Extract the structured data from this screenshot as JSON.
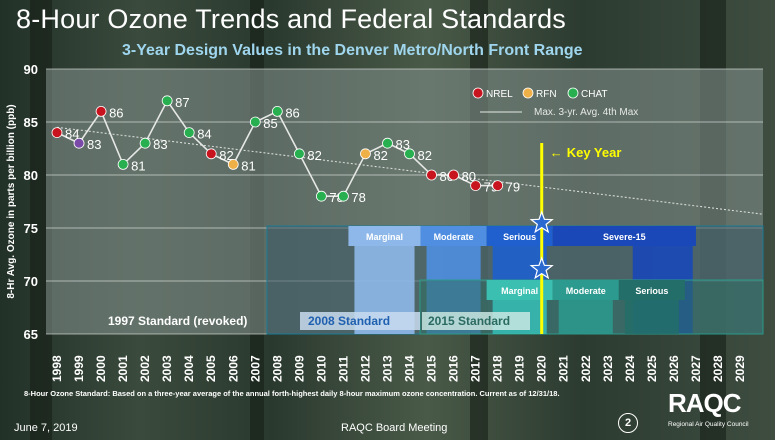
{
  "title": "8-Hour Ozone Trends and Federal Standards",
  "subtitle": "3-Year Design Values in the Denver Metro/North Front Range",
  "footnote": "8-Hour Ozone Standard: Based on a three-year average of the annual forth-highest daily 8-hour maximum ozone concentration. Current as of 12/31/18.",
  "footer": {
    "date": "June 7, 2019",
    "meeting": "RAQC Board Meeting",
    "page": "2"
  },
  "logo": {
    "text": "RAQC",
    "subtitle": "Regional Air Quality Council"
  },
  "colors": {
    "NREL": "#c8141e",
    "RFN": "#f0b048",
    "CHAT": "#28b050",
    "early": "#7a4aa8",
    "key_year": "#ffff00"
  },
  "chart_data": {
    "type": "line",
    "ylabel": "8-Hr Avg. Ozone in parts per billion (ppb)",
    "ylim": [
      65,
      90
    ],
    "yticks": [
      65,
      70,
      75,
      80,
      85,
      90
    ],
    "xlim": [
      1998,
      2029
    ],
    "xticks": [
      "1998",
      "1999",
      "2000",
      "2001",
      "2002",
      "2003",
      "2004",
      "2005",
      "2006",
      "2007",
      "2008",
      "2009",
      "2010",
      "2011",
      "2012",
      "2013",
      "2014",
      "2015",
      "2016",
      "2017",
      "2018",
      "2019",
      "2020",
      "2021",
      "2022",
      "2023",
      "2024",
      "2025",
      "2026",
      "2027",
      "2028",
      "2029"
    ],
    "grid": true,
    "legend": {
      "position": "top-right",
      "entries": [
        "NREL",
        "RFN",
        "CHAT"
      ],
      "trend_label": "Max. 3-yr. Avg. 4th Max"
    },
    "series": [
      {
        "name": "Max. 3-yr. Avg. 4th Max",
        "points": [
          {
            "x": 1998,
            "y": 84,
            "site": "NREL",
            "label": "84"
          },
          {
            "x": 1999,
            "y": 83,
            "site": "early",
            "label": "83"
          },
          {
            "x": 2000,
            "y": 86,
            "site": "NREL",
            "label": "86"
          },
          {
            "x": 2001,
            "y": 81,
            "site": "CHAT",
            "label": "81"
          },
          {
            "x": 2002,
            "y": 83,
            "site": "CHAT",
            "label": "83"
          },
          {
            "x": 2003,
            "y": 87,
            "site": "CHAT",
            "label": "87"
          },
          {
            "x": 2004,
            "y": 84,
            "site": "CHAT",
            "label": "84"
          },
          {
            "x": 2005,
            "y": 82,
            "site": "NREL",
            "label": "82"
          },
          {
            "x": 2006,
            "y": 81,
            "site": "RFN",
            "label": "81"
          },
          {
            "x": 2007,
            "y": 85,
            "site": "CHAT",
            "label": "85"
          },
          {
            "x": 2008,
            "y": 86,
            "site": "CHAT",
            "label": "86"
          },
          {
            "x": 2009,
            "y": 82,
            "site": "CHAT",
            "label": "82"
          },
          {
            "x": 2010,
            "y": 78,
            "site": "CHAT",
            "label": "78"
          },
          {
            "x": 2011,
            "y": 78,
            "site": "CHAT",
            "label": "78"
          },
          {
            "x": 2012,
            "y": 82,
            "site": "RFN",
            "label": "82"
          },
          {
            "x": 2013,
            "y": 83,
            "site": "CHAT",
            "label": "83"
          },
          {
            "x": 2014,
            "y": 82,
            "site": "CHAT",
            "label": "82"
          },
          {
            "x": 2015,
            "y": 80,
            "site": "NREL",
            "label": "80"
          },
          {
            "x": 2016,
            "y": 80,
            "site": "NREL",
            "label": "80"
          },
          {
            "x": 2017,
            "y": 79,
            "site": "NREL",
            "label": "79"
          },
          {
            "x": 2018,
            "y": 79,
            "site": "NREL",
            "label": "79"
          }
        ]
      }
    ],
    "trendline": {
      "from": [
        1998,
        84.5
      ],
      "to": [
        2029,
        76.3
      ]
    },
    "key_year": {
      "x": 2020,
      "label": "Key Year"
    },
    "standards": [
      {
        "label": "1997 Standard (revoked)",
        "level": 80
      },
      {
        "label": "2008 Standard",
        "level": 75
      },
      {
        "label": "2015 Standard",
        "level": 70
      }
    ],
    "classifications_2008": [
      {
        "label": "Marginal",
        "x0": 2011.5,
        "x1": 2014.5
      },
      {
        "label": "Moderate",
        "x0": 2014.5,
        "x1": 2017.5
      },
      {
        "label": "Serious",
        "x0": 2017.5,
        "x1": 2020.5
      },
      {
        "label": "Severe-15",
        "x0": 2020.5,
        "x1": 2027.0
      }
    ],
    "classifications_2015": [
      {
        "label": "Marginal",
        "x0": 2017.5,
        "x1": 2020.5
      },
      {
        "label": "Moderate",
        "x0": 2020.5,
        "x1": 2023.5
      },
      {
        "label": "Serious",
        "x0": 2023.5,
        "x1": 2026.5
      }
    ]
  }
}
